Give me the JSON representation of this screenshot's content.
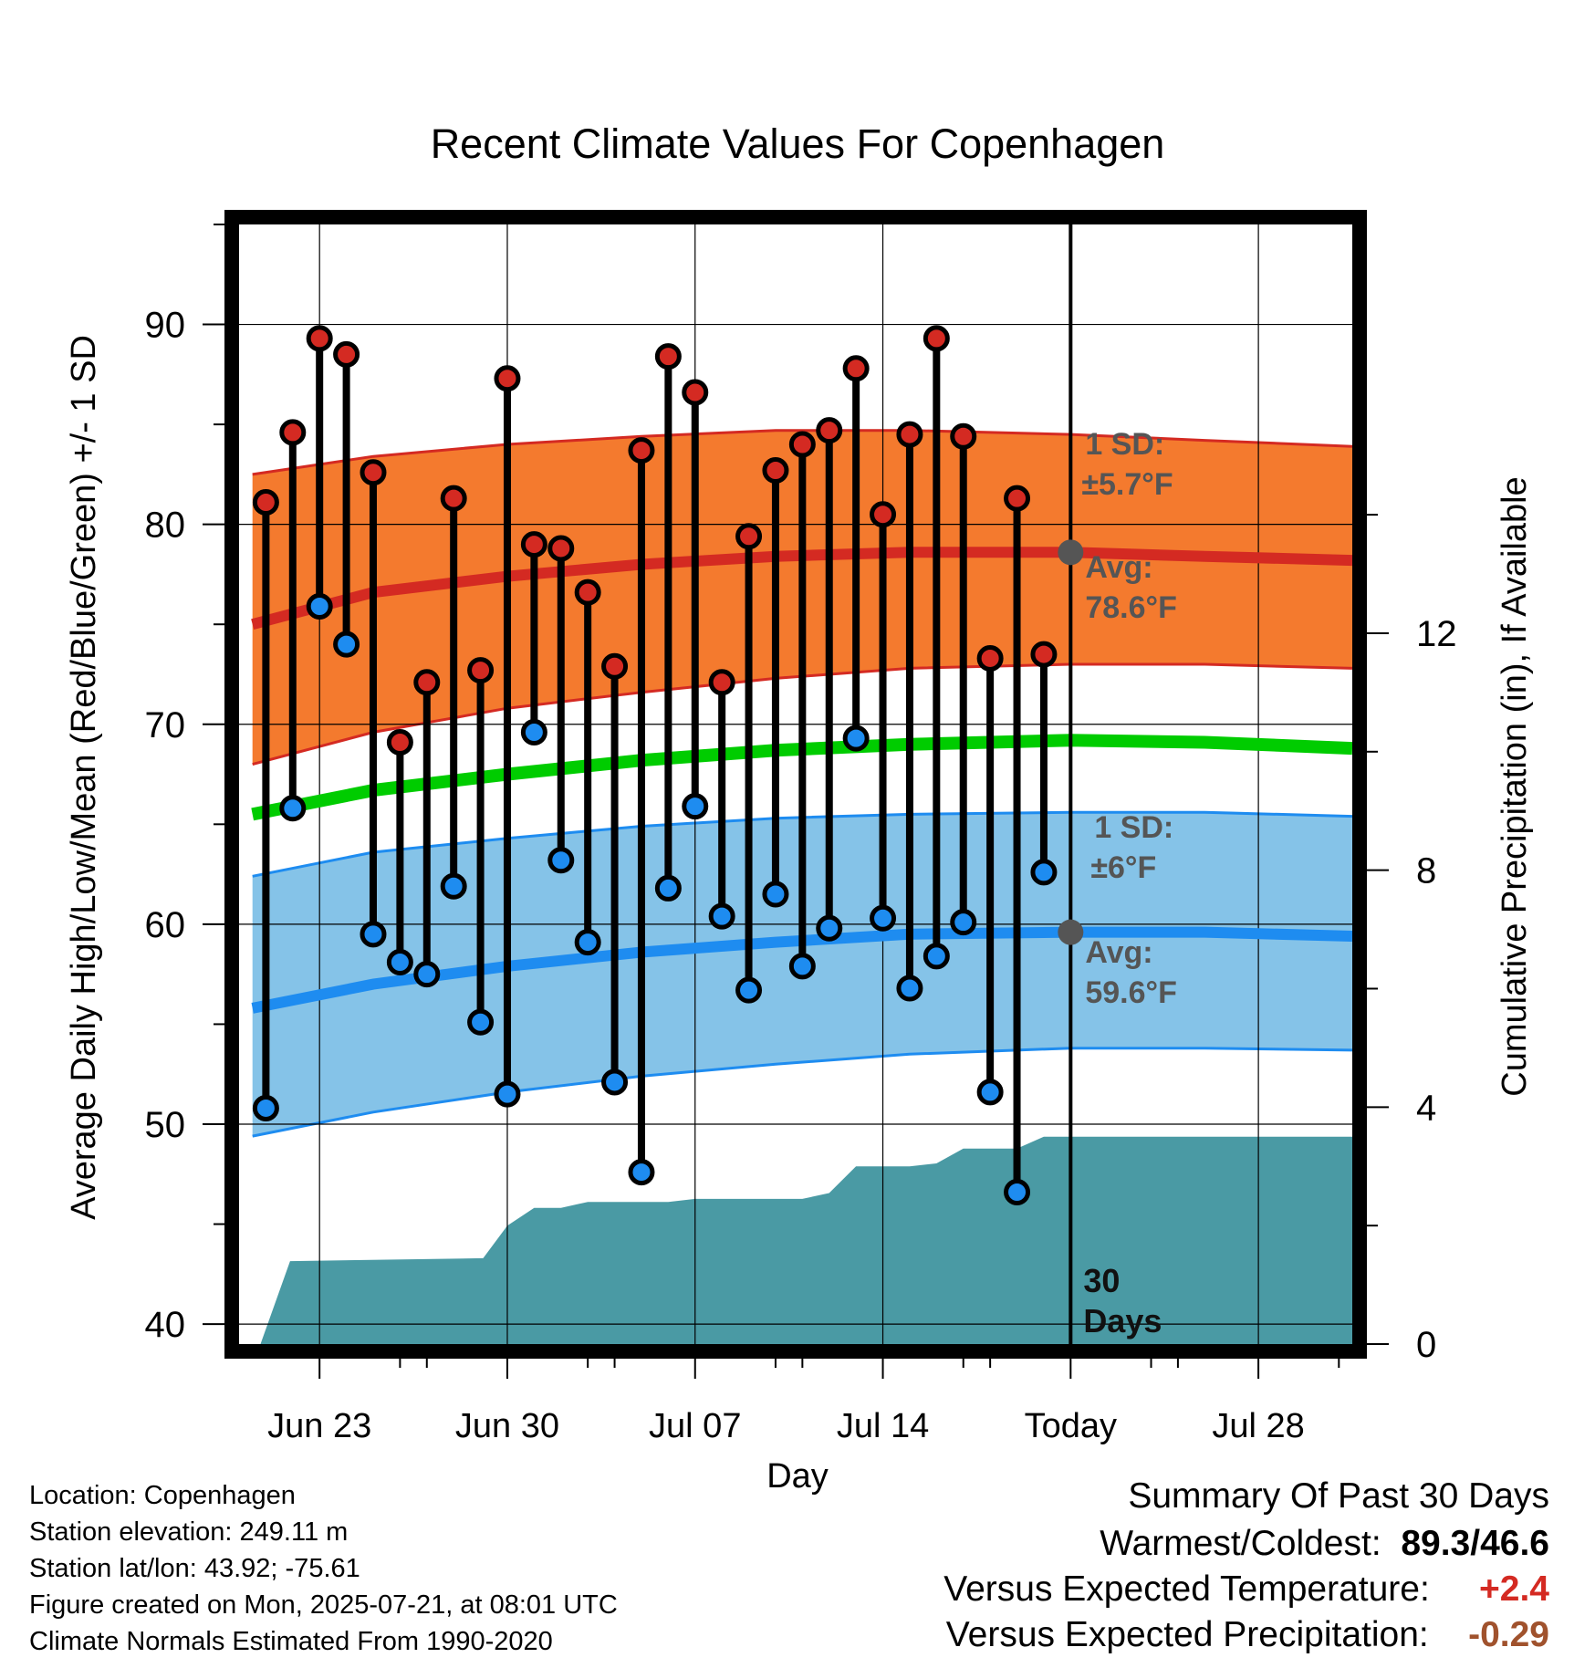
{
  "page": {
    "background": "#ffffff"
  },
  "chart_data": {
    "type": "line",
    "title": "Recent Climate Values For Copenhagen",
    "xlabel": "Day",
    "ylabel": "Average Daily High/Low/Mean (Red/Blue/Green) +/- 1 SD",
    "ylabel_right": "Cumulative Precipitation (in), If Available",
    "ylim": [
      39,
      95
    ],
    "ylim_right": [
      0,
      18.9
    ],
    "x_tick_labels": [
      {
        "day": 3,
        "label": "Jun 23"
      },
      {
        "day": 10,
        "label": "Jun 30"
      },
      {
        "day": 17,
        "label": "Jul 07"
      },
      {
        "day": 24,
        "label": "Jul 14"
      },
      {
        "day": 31,
        "label": "Today"
      },
      {
        "day": 38,
        "label": "Jul 28"
      }
    ],
    "y_ticks": [
      40,
      50,
      60,
      70,
      80,
      90
    ],
    "y_ticks_right": [
      0,
      4,
      8,
      12
    ],
    "x_range": [
      0,
      41.5
    ],
    "today_day": 31,
    "grid": true,
    "colors": {
      "high_band": "#f47a2e",
      "high_line": "#d42a22",
      "low_band": "#85c3e8",
      "low_line": "#1e8cf0",
      "mean_line": "#00cc00",
      "precip": "#4a9aa4",
      "high_marker": "#d42a22",
      "low_marker": "#1e8cf0",
      "annotation": "#555555",
      "positive_anomaly": "#d42a22",
      "precip_anomaly": "#a0522d"
    },
    "normals": {
      "days": [
        0.5,
        5,
        10,
        15,
        20,
        25,
        31,
        36,
        41.5
      ],
      "high_avg": [
        75.0,
        76.6,
        77.4,
        78.0,
        78.4,
        78.6,
        78.6,
        78.4,
        78.2
      ],
      "high_upper": [
        82.5,
        83.4,
        84.0,
        84.4,
        84.7,
        84.7,
        84.5,
        84.2,
        83.9
      ],
      "high_lower": [
        68.0,
        69.6,
        70.8,
        71.6,
        72.3,
        72.8,
        73.0,
        73.0,
        72.8
      ],
      "low_avg": [
        55.8,
        57.0,
        57.9,
        58.6,
        59.1,
        59.5,
        59.6,
        59.6,
        59.4
      ],
      "low_upper": [
        62.4,
        63.6,
        64.3,
        64.9,
        65.3,
        65.5,
        65.6,
        65.6,
        65.4
      ],
      "low_lower": [
        49.4,
        50.6,
        51.6,
        52.4,
        53.0,
        53.5,
        53.8,
        53.8,
        53.7
      ],
      "mean_avg": [
        65.5,
        66.7,
        67.5,
        68.2,
        68.7,
        69.0,
        69.2,
        69.1,
        68.8
      ]
    },
    "observations": {
      "days": [
        1,
        2,
        3,
        4,
        5,
        6,
        7,
        8,
        9,
        10,
        11,
        12,
        13,
        14,
        15,
        16,
        17,
        18,
        19,
        20,
        21,
        22,
        23,
        24,
        25,
        26,
        27,
        28,
        29,
        30
      ],
      "high": [
        81.1,
        84.6,
        89.3,
        88.5,
        82.6,
        69.1,
        72.1,
        81.3,
        72.7,
        87.3,
        79.0,
        78.8,
        76.6,
        72.9,
        83.7,
        88.4,
        86.6,
        72.1,
        79.4,
        82.7,
        84.0,
        84.7,
        87.8,
        80.5,
        84.5,
        89.3,
        84.4,
        73.3,
        81.3,
        73.5
      ],
      "low": [
        50.8,
        65.8,
        75.9,
        74.0,
        59.5,
        58.1,
        57.5,
        61.9,
        55.1,
        51.5,
        69.6,
        63.2,
        59.1,
        52.1,
        47.6,
        61.8,
        65.9,
        60.4,
        56.7,
        61.5,
        57.9,
        59.8,
        69.3,
        60.3,
        56.8,
        58.4,
        60.1,
        51.6,
        46.6,
        62.6
      ]
    },
    "precipitation": {
      "days": [
        0.8,
        1.9,
        9.1,
        10.0,
        11.0,
        12.0,
        13.0,
        14.0,
        15.0,
        16.0,
        17.0,
        18.0,
        19.0,
        20.0,
        21.0,
        22.0,
        23.0,
        24.0,
        25.0,
        26.0,
        27.0,
        28.0,
        29.0,
        30.0,
        31.0,
        41.5
      ],
      "cumulative": [
        0.0,
        1.4,
        1.45,
        2.0,
        2.3,
        2.3,
        2.4,
        2.4,
        2.4,
        2.4,
        2.45,
        2.45,
        2.45,
        2.45,
        2.45,
        2.55,
        3.0,
        3.0,
        3.0,
        3.05,
        3.3,
        3.3,
        3.3,
        3.5,
        3.5,
        3.5
      ]
    },
    "annotations": {
      "high_sd_label": "1 SD:",
      "high_sd_value": "±5.7°F",
      "high_avg_label": "Avg:",
      "high_avg_value": "78.6°F",
      "low_sd_label": "1 SD:",
      "low_sd_value": "±6°F",
      "low_avg_label": "Avg:",
      "low_avg_value": "59.6°F",
      "days_label_num": "30",
      "days_label_word": "Days"
    }
  },
  "info": {
    "location": "Location: Copenhagen",
    "elevation": "Station elevation: 249.11 m",
    "latlon": "Station lat/lon: 43.92; -75.61",
    "created": "Figure created on Mon, 2025-07-21, at 08:01 UTC",
    "normals": "Climate Normals Estimated From 1990-2020"
  },
  "summary": {
    "title": "Summary Of Past 30 Days",
    "warm_cold_label": "Warmest/Coldest:",
    "warm_cold_value": "89.3/46.6",
    "temp_label": "Versus Expected Temperature:",
    "temp_value": "+2.4",
    "precip_label": "Versus Expected Precipitation:",
    "precip_value": "-0.29"
  }
}
